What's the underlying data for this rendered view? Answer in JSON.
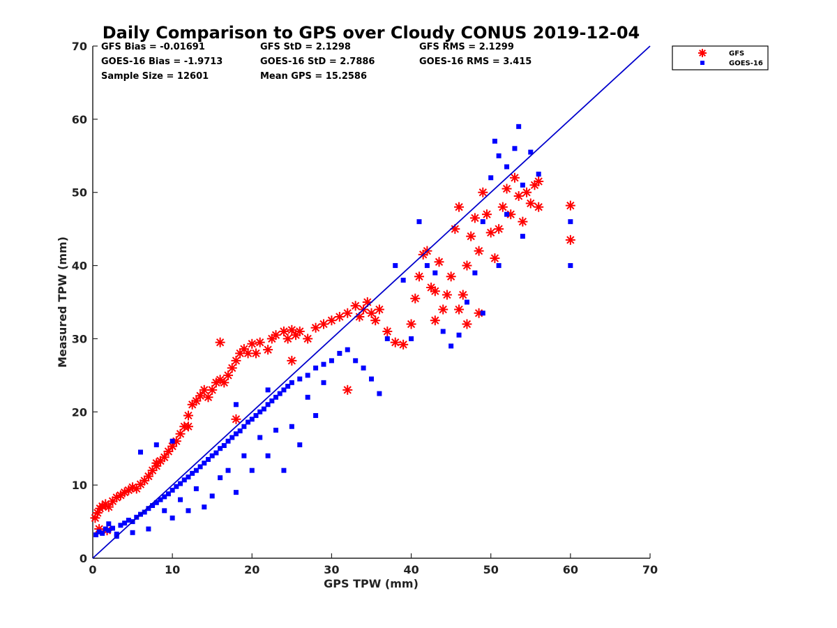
{
  "chart_data": {
    "type": "scatter",
    "title": "Daily Comparison to GPS over Cloudy CONUS 2019-12-04",
    "xlabel": "GPS TPW (mm)",
    "ylabel": "Measured TPW (mm)",
    "xlim": [
      0,
      70
    ],
    "ylim": [
      0,
      70
    ],
    "xticks": [
      "0",
      "10",
      "20",
      "30",
      "40",
      "50",
      "60",
      "70"
    ],
    "yticks": [
      "0",
      "10",
      "20",
      "30",
      "40",
      "50",
      "60",
      "70"
    ],
    "grid": false,
    "legend_position": "outside-top-right",
    "stats": [
      [
        "GFS Bias = -0.01691",
        "GFS StD = 2.1298",
        "GFS RMS = 2.1299"
      ],
      [
        "GOES-16 Bias = -1.9713",
        "GOES-16 StD = 2.7886",
        "GOES-16 RMS = 3.415"
      ],
      [
        "Sample Size = 12601",
        "Mean GPS = 15.2586",
        ""
      ]
    ],
    "reference_line": {
      "from": [
        0,
        0
      ],
      "to": [
        70,
        70
      ],
      "color": "#0000cc"
    },
    "series": [
      {
        "name": "GFS",
        "marker": "asterisk",
        "color": "#ff0000",
        "points": [
          [
            0.3,
            5.5
          ],
          [
            0.6,
            6.2
          ],
          [
            0.9,
            6.8
          ],
          [
            1.2,
            7.1
          ],
          [
            1.6,
            7.4
          ],
          [
            2.0,
            7.0
          ],
          [
            2.5,
            7.8
          ],
          [
            3.0,
            8.3
          ],
          [
            3.5,
            8.6
          ],
          [
            4.0,
            9.0
          ],
          [
            4.5,
            9.3
          ],
          [
            5.0,
            9.7
          ],
          [
            5.5,
            9.5
          ],
          [
            6.0,
            10.1
          ],
          [
            6.5,
            10.6
          ],
          [
            7.0,
            11.2
          ],
          [
            7.5,
            12.0
          ],
          [
            8.0,
            12.6
          ],
          [
            8.5,
            13.3
          ],
          [
            9.0,
            13.8
          ],
          [
            9.5,
            14.6
          ],
          [
            10.0,
            15.3
          ],
          [
            10.5,
            16.0
          ],
          [
            11.0,
            17.0
          ],
          [
            11.5,
            18.0
          ],
          [
            12.0,
            19.5
          ],
          [
            12.5,
            21.0
          ],
          [
            13.0,
            21.5
          ],
          [
            13.5,
            22.2
          ],
          [
            14.0,
            23.0
          ],
          [
            14.5,
            22.0
          ],
          [
            15.0,
            23.0
          ],
          [
            15.5,
            24.0
          ],
          [
            16.0,
            24.4
          ],
          [
            16.5,
            24.0
          ],
          [
            17.0,
            25.0
          ],
          [
            17.5,
            26.0
          ],
          [
            18.0,
            27.0
          ],
          [
            18.5,
            28.0
          ],
          [
            19.0,
            28.6
          ],
          [
            19.5,
            28.0
          ],
          [
            20.0,
            29.3
          ],
          [
            20.5,
            28.0
          ],
          [
            21.0,
            29.5
          ],
          [
            22.0,
            28.5
          ],
          [
            22.5,
            30.0
          ],
          [
            23.0,
            30.5
          ],
          [
            24.0,
            31.0
          ],
          [
            24.5,
            30.0
          ],
          [
            25.0,
            31.2
          ],
          [
            25.5,
            30.5
          ],
          [
            26.0,
            31.0
          ],
          [
            27.0,
            30.0
          ],
          [
            28.0,
            31.5
          ],
          [
            29.0,
            32.0
          ],
          [
            30.0,
            32.5
          ],
          [
            31.0,
            33.0
          ],
          [
            32.0,
            33.5
          ],
          [
            33.0,
            34.5
          ],
          [
            33.5,
            33.0
          ],
          [
            34.0,
            34.0
          ],
          [
            34.5,
            35.0
          ],
          [
            35.0,
            33.5
          ],
          [
            35.5,
            32.5
          ],
          [
            36.0,
            34.0
          ],
          [
            37.0,
            31.0
          ],
          [
            38.0,
            29.5
          ],
          [
            39.0,
            29.2
          ],
          [
            40.0,
            32.0
          ],
          [
            40.5,
            35.5
          ],
          [
            41.0,
            38.5
          ],
          [
            41.5,
            41.5
          ],
          [
            42.0,
            42.0
          ],
          [
            42.5,
            37.0
          ],
          [
            43.0,
            36.5
          ],
          [
            43.5,
            40.5
          ],
          [
            44.0,
            34.0
          ],
          [
            44.5,
            36.0
          ],
          [
            45.0,
            38.5
          ],
          [
            45.5,
            45.0
          ],
          [
            46.0,
            48.0
          ],
          [
            46.5,
            36.0
          ],
          [
            47.0,
            40.0
          ],
          [
            47.5,
            44.0
          ],
          [
            48.0,
            46.5
          ],
          [
            48.5,
            42.0
          ],
          [
            49.0,
            50.0
          ],
          [
            49.5,
            47.0
          ],
          [
            50.0,
            44.5
          ],
          [
            50.5,
            41.0
          ],
          [
            51.0,
            45.0
          ],
          [
            51.5,
            48.0
          ],
          [
            52.0,
            50.5
          ],
          [
            52.5,
            47.0
          ],
          [
            53.0,
            52.0
          ],
          [
            53.5,
            49.5
          ],
          [
            54.0,
            46.0
          ],
          [
            54.5,
            50.0
          ],
          [
            55.0,
            48.5
          ],
          [
            55.5,
            51.0
          ],
          [
            56.0,
            48.0
          ],
          [
            56.0,
            51.5
          ],
          [
            60.0,
            48.2
          ],
          [
            60.0,
            43.5
          ],
          [
            32.0,
            23.0
          ],
          [
            25.0,
            27.0
          ],
          [
            18.0,
            19.0
          ],
          [
            16.0,
            29.5
          ],
          [
            12.0,
            18.0
          ],
          [
            8.0,
            13.0
          ],
          [
            0.8,
            4.0
          ],
          [
            1.8,
            3.8
          ],
          [
            43.0,
            32.5
          ],
          [
            46.0,
            34.0
          ],
          [
            48.5,
            33.5
          ],
          [
            47.0,
            32.0
          ]
        ]
      },
      {
        "name": "GOES-16",
        "marker": "square",
        "color": "#0000ff",
        "points": [
          [
            0.4,
            3.2
          ],
          [
            0.8,
            3.6
          ],
          [
            1.2,
            3.4
          ],
          [
            1.6,
            4.0
          ],
          [
            2.0,
            3.8
          ],
          [
            2.5,
            4.1
          ],
          [
            3.0,
            3.3
          ],
          [
            3.5,
            4.5
          ],
          [
            4.0,
            4.8
          ],
          [
            4.5,
            5.2
          ],
          [
            5.0,
            5.0
          ],
          [
            5.5,
            5.6
          ],
          [
            6.0,
            6.0
          ],
          [
            6.5,
            6.3
          ],
          [
            7.0,
            6.8
          ],
          [
            7.5,
            7.2
          ],
          [
            8.0,
            7.6
          ],
          [
            8.5,
            8.0
          ],
          [
            9.0,
            8.4
          ],
          [
            9.5,
            8.8
          ],
          [
            10.0,
            9.3
          ],
          [
            10.5,
            9.8
          ],
          [
            11.0,
            10.2
          ],
          [
            11.5,
            10.7
          ],
          [
            12.0,
            11.1
          ],
          [
            12.5,
            11.6
          ],
          [
            13.0,
            12.0
          ],
          [
            13.5,
            12.5
          ],
          [
            14.0,
            13.0
          ],
          [
            14.5,
            13.5
          ],
          [
            15.0,
            14.0
          ],
          [
            15.5,
            14.4
          ],
          [
            16.0,
            15.0
          ],
          [
            16.5,
            15.4
          ],
          [
            17.0,
            16.0
          ],
          [
            17.5,
            16.5
          ],
          [
            18.0,
            17.0
          ],
          [
            18.5,
            17.4
          ],
          [
            19.0,
            18.0
          ],
          [
            19.5,
            18.6
          ],
          [
            20.0,
            19.0
          ],
          [
            20.5,
            19.5
          ],
          [
            21.0,
            20.0
          ],
          [
            21.5,
            20.4
          ],
          [
            22.0,
            21.0
          ],
          [
            22.5,
            21.5
          ],
          [
            23.0,
            22.0
          ],
          [
            23.5,
            22.5
          ],
          [
            24.0,
            23.0
          ],
          [
            24.5,
            23.5
          ],
          [
            25.0,
            24.0
          ],
          [
            26.0,
            24.5
          ],
          [
            27.0,
            25.0
          ],
          [
            28.0,
            26.0
          ],
          [
            29.0,
            26.5
          ],
          [
            30.0,
            27.0
          ],
          [
            31.0,
            28.0
          ],
          [
            32.0,
            28.5
          ],
          [
            33.0,
            27.0
          ],
          [
            34.0,
            26.0
          ],
          [
            35.0,
            24.5
          ],
          [
            36.0,
            22.5
          ],
          [
            37.0,
            30.0
          ],
          [
            38.0,
            40.0
          ],
          [
            39.0,
            38.0
          ],
          [
            40.0,
            30.0
          ],
          [
            41.0,
            46.0
          ],
          [
            42.0,
            40.0
          ],
          [
            43.0,
            39.0
          ],
          [
            44.0,
            31.0
          ],
          [
            45.0,
            29.0
          ],
          [
            46.0,
            30.5
          ],
          [
            47.0,
            35.0
          ],
          [
            48.0,
            39.0
          ],
          [
            49.0,
            46.0
          ],
          [
            50.0,
            52.0
          ],
          [
            50.5,
            57.0
          ],
          [
            51.0,
            55.0
          ],
          [
            52.0,
            53.5
          ],
          [
            53.0,
            56.0
          ],
          [
            53.5,
            59.0
          ],
          [
            54.0,
            51.0
          ],
          [
            55.0,
            55.5
          ],
          [
            56.0,
            52.5
          ],
          [
            52.0,
            47.0
          ],
          [
            54.0,
            44.0
          ],
          [
            51.0,
            40.0
          ],
          [
            49.0,
            33.5
          ],
          [
            60.0,
            46.0
          ],
          [
            60.0,
            40.0
          ],
          [
            15.0,
            8.5
          ],
          [
            18.0,
            9.0
          ],
          [
            14.0,
            7.0
          ],
          [
            10.0,
            5.5
          ],
          [
            7.0,
            4.0
          ],
          [
            12.0,
            6.5
          ],
          [
            6.0,
            14.5
          ],
          [
            8.0,
            15.5
          ],
          [
            10.0,
            16.0
          ],
          [
            22.0,
            14.0
          ],
          [
            25.0,
            18.0
          ],
          [
            27.0,
            22.0
          ],
          [
            26.0,
            15.5
          ],
          [
            20.0,
            12.0
          ],
          [
            16.0,
            11.0
          ],
          [
            13.0,
            9.5
          ],
          [
            11.0,
            8.0
          ],
          [
            9.0,
            6.5
          ],
          [
            5.0,
            3.5
          ],
          [
            3.0,
            3.0
          ],
          [
            2.0,
            4.7
          ],
          [
            29.0,
            24.0
          ],
          [
            24.0,
            12.0
          ],
          [
            28.0,
            19.5
          ],
          [
            19.0,
            14.0
          ],
          [
            21.0,
            16.5
          ],
          [
            23.0,
            17.5
          ],
          [
            17.0,
            12.0
          ],
          [
            22.0,
            23.0
          ],
          [
            18.0,
            21.0
          ]
        ]
      }
    ]
  }
}
